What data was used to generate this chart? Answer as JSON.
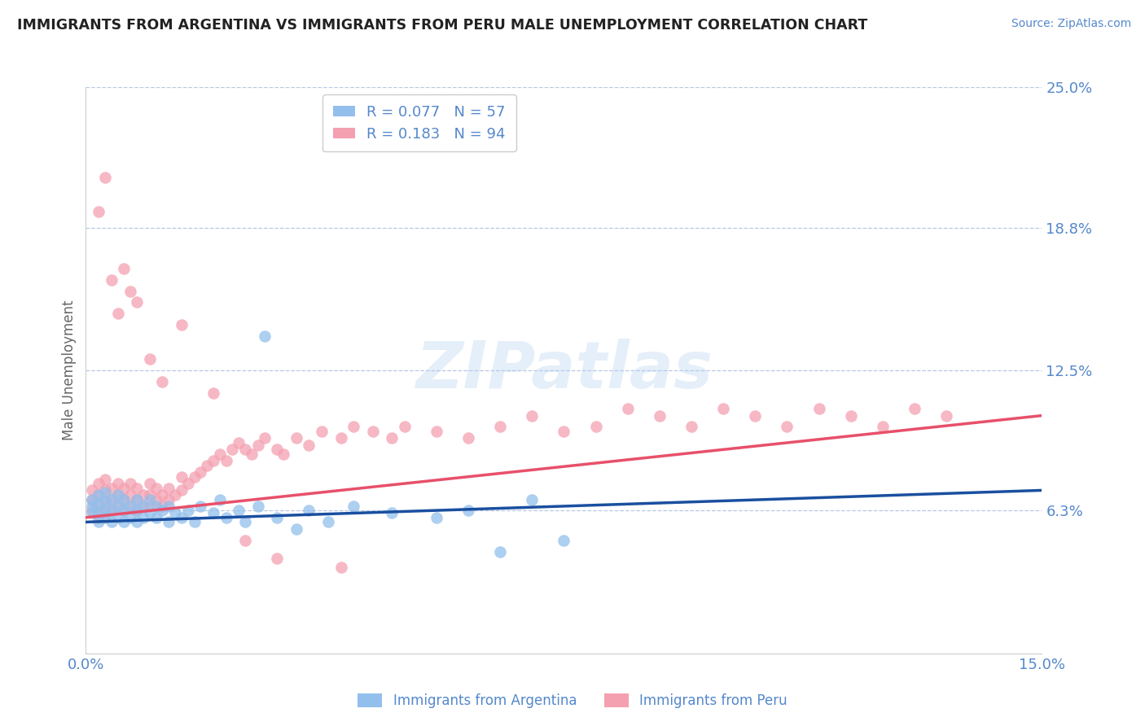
{
  "title": "IMMIGRANTS FROM ARGENTINA VS IMMIGRANTS FROM PERU MALE UNEMPLOYMENT CORRELATION CHART",
  "source": "Source: ZipAtlas.com",
  "ylabel": "Male Unemployment",
  "xlim": [
    0.0,
    0.15
  ],
  "ylim": [
    0.0,
    0.25
  ],
  "xtick_vals": [
    0.0,
    0.15
  ],
  "xtick_labels": [
    "0.0%",
    "15.0%"
  ],
  "ytick_positions_right": [
    0.25,
    0.188,
    0.125,
    0.063
  ],
  "ytick_labels_right": [
    "25.0%",
    "18.8%",
    "12.5%",
    "6.3%"
  ],
  "argentina_R": 0.077,
  "argentina_N": 57,
  "peru_R": 0.183,
  "peru_N": 94,
  "argentina_color": "#92BFEC",
  "peru_color": "#F4A0B0",
  "argentina_line_color": "#1A4FA0",
  "peru_line_color": "#E8506A",
  "label_color": "#5588CC",
  "watermark": "ZIPatlas",
  "argentina_scatter_x": [
    0.001,
    0.001,
    0.001,
    0.002,
    0.002,
    0.002,
    0.002,
    0.003,
    0.003,
    0.003,
    0.003,
    0.004,
    0.004,
    0.004,
    0.005,
    0.005,
    0.005,
    0.006,
    0.006,
    0.006,
    0.007,
    0.007,
    0.008,
    0.008,
    0.008,
    0.009,
    0.009,
    0.01,
    0.01,
    0.011,
    0.011,
    0.012,
    0.013,
    0.013,
    0.014,
    0.015,
    0.016,
    0.017,
    0.018,
    0.02,
    0.021,
    0.022,
    0.024,
    0.025,
    0.027,
    0.028,
    0.03,
    0.033,
    0.035,
    0.038,
    0.042,
    0.048,
    0.055,
    0.06,
    0.065,
    0.07,
    0.075
  ],
  "argentina_scatter_y": [
    0.062,
    0.065,
    0.068,
    0.058,
    0.062,
    0.066,
    0.07,
    0.06,
    0.063,
    0.067,
    0.071,
    0.058,
    0.063,
    0.068,
    0.06,
    0.065,
    0.07,
    0.058,
    0.063,
    0.068,
    0.06,
    0.065,
    0.058,
    0.063,
    0.068,
    0.06,
    0.065,
    0.062,
    0.068,
    0.06,
    0.065,
    0.063,
    0.058,
    0.065,
    0.062,
    0.06,
    0.063,
    0.058,
    0.065,
    0.062,
    0.068,
    0.06,
    0.063,
    0.058,
    0.065,
    0.14,
    0.06,
    0.055,
    0.063,
    0.058,
    0.065,
    0.062,
    0.06,
    0.063,
    0.045,
    0.068,
    0.05
  ],
  "peru_scatter_x": [
    0.001,
    0.001,
    0.001,
    0.002,
    0.002,
    0.002,
    0.002,
    0.003,
    0.003,
    0.003,
    0.003,
    0.004,
    0.004,
    0.004,
    0.005,
    0.005,
    0.005,
    0.006,
    0.006,
    0.006,
    0.007,
    0.007,
    0.007,
    0.008,
    0.008,
    0.008,
    0.009,
    0.009,
    0.01,
    0.01,
    0.01,
    0.011,
    0.011,
    0.012,
    0.012,
    0.013,
    0.013,
    0.014,
    0.015,
    0.015,
    0.016,
    0.017,
    0.018,
    0.019,
    0.02,
    0.021,
    0.022,
    0.023,
    0.024,
    0.025,
    0.026,
    0.027,
    0.028,
    0.03,
    0.031,
    0.033,
    0.035,
    0.037,
    0.04,
    0.042,
    0.045,
    0.048,
    0.05,
    0.055,
    0.06,
    0.065,
    0.07,
    0.075,
    0.08,
    0.085,
    0.09,
    0.095,
    0.1,
    0.105,
    0.11,
    0.115,
    0.12,
    0.125,
    0.13,
    0.135,
    0.002,
    0.003,
    0.004,
    0.005,
    0.006,
    0.007,
    0.008,
    0.01,
    0.012,
    0.015,
    0.02,
    0.025,
    0.03,
    0.04
  ],
  "peru_scatter_y": [
    0.063,
    0.068,
    0.072,
    0.06,
    0.065,
    0.07,
    0.075,
    0.062,
    0.067,
    0.072,
    0.077,
    0.063,
    0.068,
    0.073,
    0.065,
    0.07,
    0.075,
    0.063,
    0.068,
    0.073,
    0.065,
    0.07,
    0.075,
    0.063,
    0.068,
    0.073,
    0.065,
    0.07,
    0.065,
    0.07,
    0.075,
    0.068,
    0.073,
    0.065,
    0.07,
    0.068,
    0.073,
    0.07,
    0.072,
    0.078,
    0.075,
    0.078,
    0.08,
    0.083,
    0.085,
    0.088,
    0.085,
    0.09,
    0.093,
    0.09,
    0.088,
    0.092,
    0.095,
    0.09,
    0.088,
    0.095,
    0.092,
    0.098,
    0.095,
    0.1,
    0.098,
    0.095,
    0.1,
    0.098,
    0.095,
    0.1,
    0.105,
    0.098,
    0.1,
    0.108,
    0.105,
    0.1,
    0.108,
    0.105,
    0.1,
    0.108,
    0.105,
    0.1,
    0.108,
    0.105,
    0.195,
    0.21,
    0.165,
    0.15,
    0.17,
    0.16,
    0.155,
    0.13,
    0.12,
    0.145,
    0.115,
    0.05,
    0.042,
    0.038
  ],
  "arg_trend_x": [
    0.0,
    0.15
  ],
  "arg_trend_y": [
    0.058,
    0.072
  ],
  "peru_trend_x": [
    0.0,
    0.15
  ],
  "peru_trend_y": [
    0.06,
    0.105
  ]
}
